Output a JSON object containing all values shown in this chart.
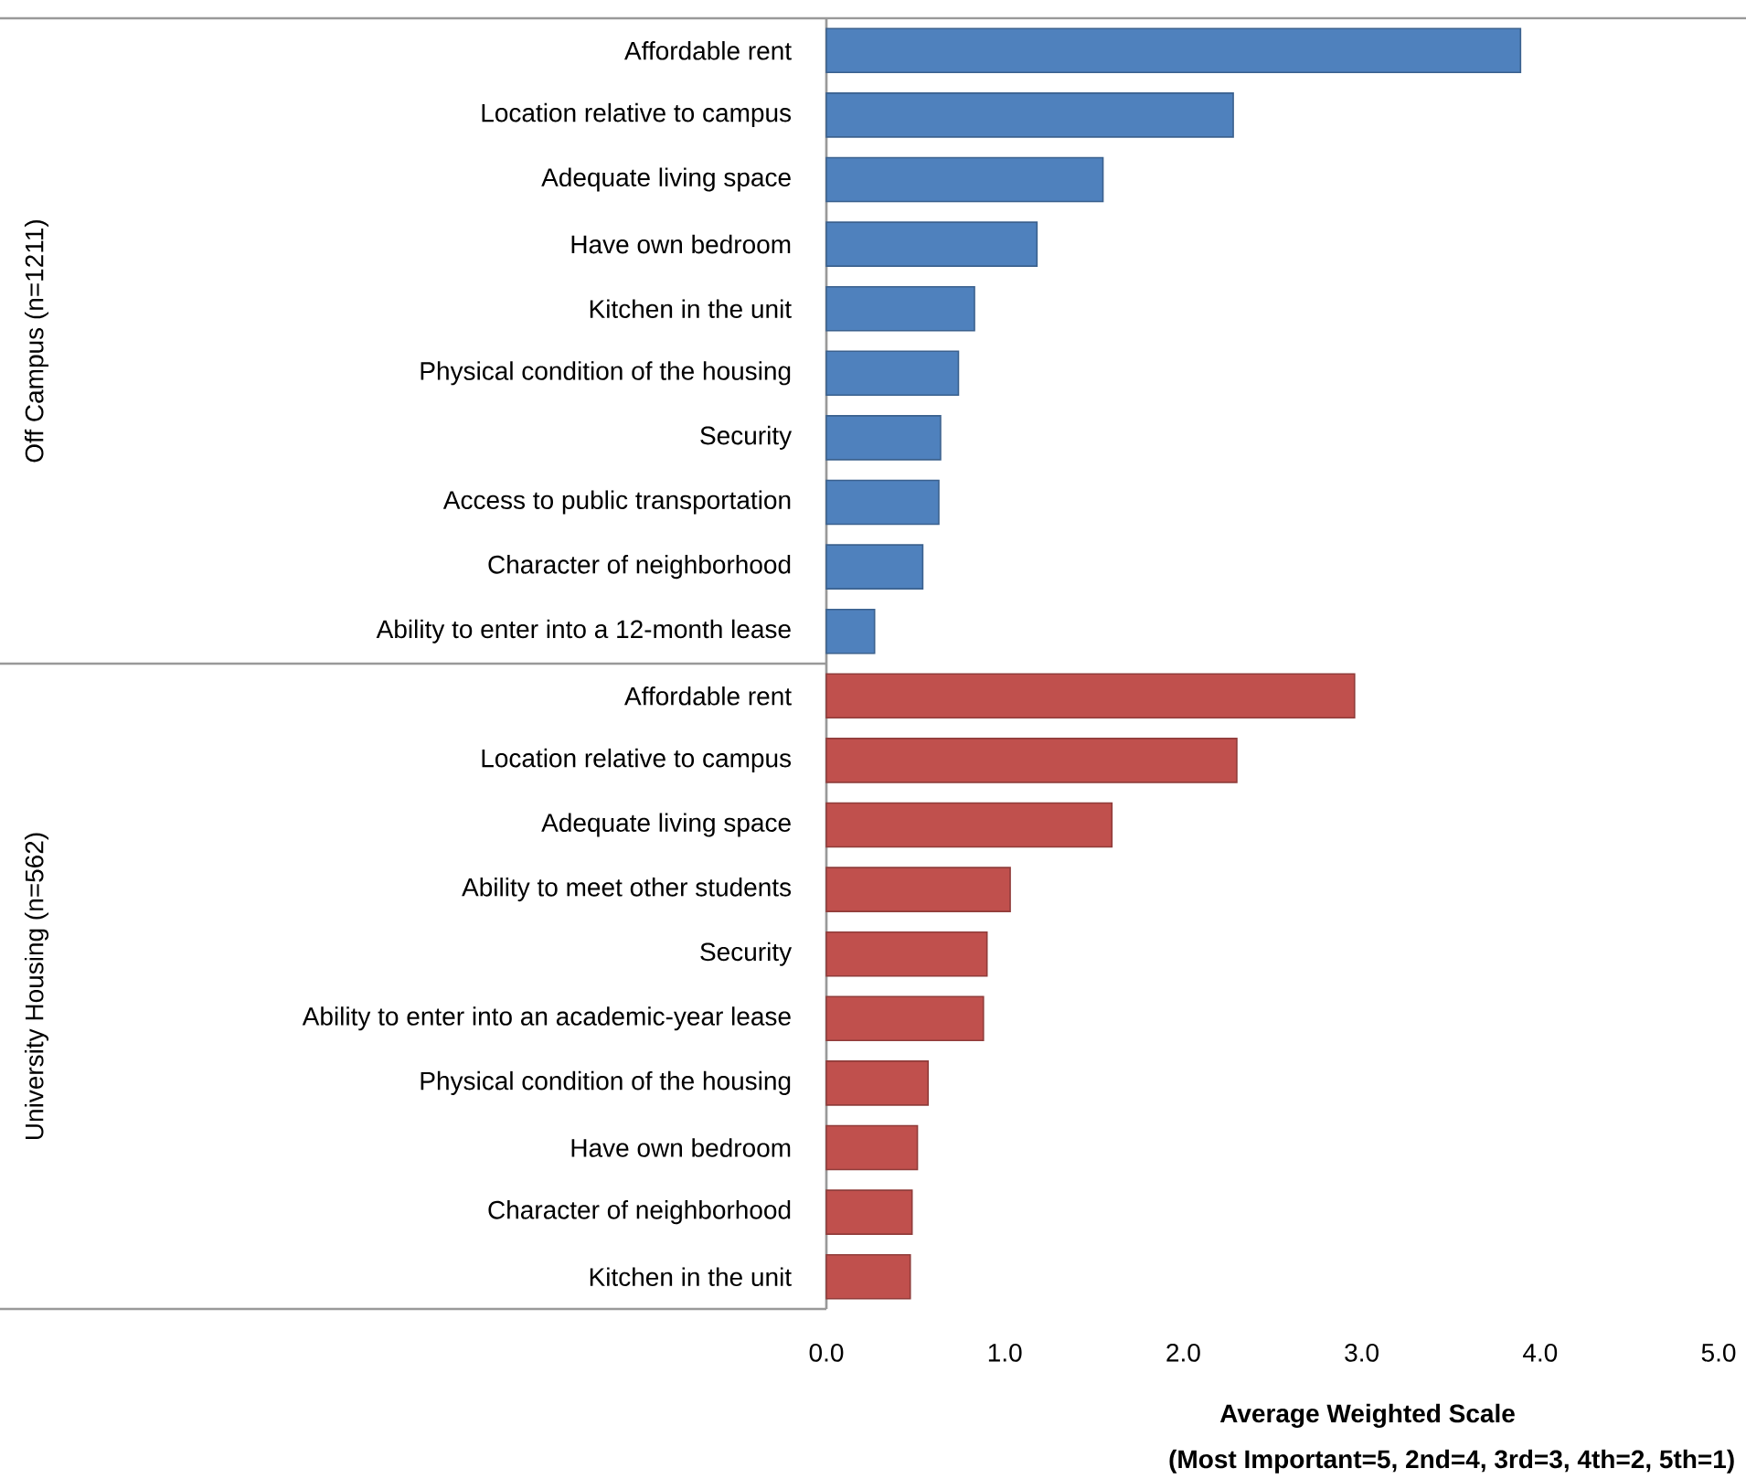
{
  "chart_data": {
    "type": "bar",
    "orientation": "horizontal",
    "xlabel": "Average Weighted Scale",
    "annotations": [
      "Off Campus (n=1211)",
      "University Housing (n=562)",
      "(Most Important=5, 2nd=4, 3rd=3, 4th=2, 5th=1)"
    ],
    "categories": [
      "Affordable rent",
      "Location relative to campus",
      "Adequate living space",
      "Have own bedroom",
      "Kitchen in the unit",
      "Physical condition of the housing",
      "Security",
      "Access to public transportation",
      "Character of neighborhood",
      "Ability to enter into a 12-month lease",
      "Affordable rent",
      "Location relative to campus",
      "Adequate living space",
      "Ability to meet other students",
      "Security",
      "Ability to enter into an academic-year lease",
      "Physical condition of the housing",
      "Have own bedroom",
      "Character of neighborhood",
      "Kitchen in the unit"
    ],
    "series": [
      {
        "color": "#4f81bd",
        "values": [
          3.89,
          2.28,
          1.55,
          1.18,
          0.83,
          0.74,
          0.64,
          0.63,
          0.54,
          0.27,
          null,
          null,
          null,
          null,
          null,
          null,
          null,
          null,
          null,
          null
        ]
      },
      {
        "color": "#c0504d",
        "values": [
          null,
          null,
          null,
          null,
          null,
          null,
          null,
          null,
          null,
          null,
          2.96,
          2.3,
          1.6,
          1.03,
          0.9,
          0.88,
          0.57,
          0.51,
          0.48,
          0.47
        ]
      }
    ],
    "xlim": [
      0,
      5
    ],
    "xticks": [
      {
        "value": 0,
        "label": "0.0"
      },
      {
        "value": 1,
        "label": "1.0"
      },
      {
        "value": 2,
        "label": "2.0"
      },
      {
        "value": 3,
        "label": "3.0"
      },
      {
        "value": 4,
        "label": "4.0"
      },
      {
        "value": 5,
        "label": "5.0"
      }
    ]
  }
}
